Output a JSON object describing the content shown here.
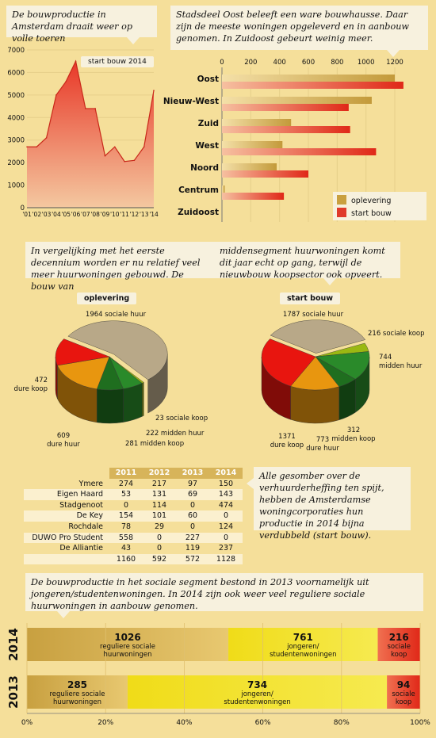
{
  "line_callout": "De bouwproductie in Amsterdam draait weer op volle toeren",
  "bar_callout": "Stadsdeel Oost beleeft een ware bouwhausse. Daar zijn de meeste woningen opgeleverd en in aanbouw genomen. In Zuidoost gebeurt weinig meer.",
  "pie_callout": "In vergelijking met het eerste decennium worden er nu relatief veel meer huurwoningen gebouwd. De bouw van middensegment huurwoningen komt dit jaar echt op gang, terwijl de nieuwbouw koopsector ook opveert.",
  "table_callout": "Alle gesomber over de verhuurderheffing ten spijt, hebben de Amsterdamse woningcorporaties hun productie in 2014 bijna verdubbeld (start bouw).",
  "stack_callout": "De bouwproductie in het sociale segment bestond in 2013 voornamelijk uit jongeren/studentenwoningen. In 2014 zijn ook weer veel reguliere sociale huurwoningen in aanbouw genomen.",
  "colors": {
    "oplevering": "#c9a040",
    "start_bouw": "#e03a2a",
    "pie_sociale": "#b8a888",
    "pie_dure_koop": "#e8150f",
    "pie_dure_huur": "#e8960f",
    "pie_midden": "#2a8a2a",
    "pie_sociaal_koop": "#9ab812"
  },
  "chart_data": [
    {
      "type": "area",
      "title": "",
      "series_label": "start bouw 2014",
      "x": [
        "'01",
        "'02",
        "'03",
        "'04",
        "'05",
        "'06",
        "'07",
        "'08",
        "'09",
        "'10",
        "'11",
        "'12",
        "'13",
        "'14"
      ],
      "values": [
        2700,
        2700,
        3100,
        5000,
        5600,
        6500,
        4400,
        4400,
        2300,
        2700,
        2050,
        2100,
        2700,
        5200
      ],
      "yticks": [
        "0",
        "1000",
        "2000",
        "3000",
        "4000",
        "5000",
        "6000",
        "7000"
      ],
      "ylim": [
        0,
        7000
      ]
    },
    {
      "type": "bar",
      "orientation": "horizontal",
      "categories": [
        "Oost",
        "Nieuw-West",
        "Zuid",
        "West",
        "Noord",
        "Centrum",
        "Zuidoost"
      ],
      "series": [
        {
          "name": "oplevering",
          "values": [
            1200,
            1040,
            480,
            420,
            380,
            20,
            0
          ]
        },
        {
          "name": "start bouw",
          "values": [
            1260,
            880,
            890,
            1070,
            600,
            430,
            0
          ]
        }
      ],
      "xticks": [
        "0",
        "200",
        "400",
        "600",
        "800",
        "1000",
        "1200"
      ],
      "xlim": [
        0,
        1300
      ],
      "legend": "bottom-right"
    },
    {
      "type": "pie",
      "title": "oplevering",
      "slices": [
        {
          "label": "sociale huur",
          "value": 1964
        },
        {
          "label": "sociale koop",
          "value": 23
        },
        {
          "label": "midden huur",
          "value": 222
        },
        {
          "label": "midden koop",
          "value": 281
        },
        {
          "label": "dure huur",
          "value": 609
        },
        {
          "label": "dure koop",
          "value": 472
        }
      ]
    },
    {
      "type": "pie",
      "title": "start bouw",
      "slices": [
        {
          "label": "sociale huur",
          "value": 1787
        },
        {
          "label": "sociale koop",
          "value": 216
        },
        {
          "label": "midden huur",
          "value": 744
        },
        {
          "label": "midden koop",
          "value": 312
        },
        {
          "label": "dure huur",
          "value": 773
        },
        {
          "label": "dure koop",
          "value": 1371
        }
      ]
    },
    {
      "type": "table",
      "columns": [
        "2011",
        "2012",
        "2013",
        "2014"
      ],
      "rows": [
        {
          "name": "Ymere",
          "values": [
            "274",
            "217",
            "97",
            "150"
          ]
        },
        {
          "name": "Eigen Haard",
          "values": [
            "53",
            "131",
            "69",
            "143"
          ]
        },
        {
          "name": "Stadgenoot",
          "values": [
            "0",
            "114",
            "0",
            "474"
          ]
        },
        {
          "name": "De Key",
          "values": [
            "154",
            "101",
            "60",
            "0"
          ]
        },
        {
          "name": "Rochdale",
          "values": [
            "78",
            "29",
            "0",
            "124"
          ]
        },
        {
          "name": "DUWO Pro Student",
          "values": [
            "558",
            "0",
            "227",
            "0"
          ]
        },
        {
          "name": "De Alliantie",
          "values": [
            "43",
            "0",
            "119",
            "237"
          ]
        }
      ],
      "totals": [
        "1160",
        "592",
        "572",
        "1128"
      ]
    },
    {
      "type": "bar",
      "orientation": "horizontal",
      "stacked": "percent",
      "rows": [
        {
          "year": "2014",
          "segments": [
            {
              "value": 1026,
              "label1": "reguliere sociale",
              "label2": "huurwoningen"
            },
            {
              "value": 761,
              "label1": "jongeren/",
              "label2": "studentenwoningen"
            },
            {
              "value": 216,
              "label1": "sociale",
              "label2": "koop"
            }
          ]
        },
        {
          "year": "2013",
          "segments": [
            {
              "value": 285,
              "label1": "reguliere sociale",
              "label2": "huurwoningen"
            },
            {
              "value": 734,
              "label1": "jongeren/",
              "label2": "studentenwoningen"
            },
            {
              "value": 94,
              "label1": "sociale",
              "label2": "koop"
            }
          ]
        }
      ],
      "xticks": [
        "0%",
        "20%",
        "40%",
        "60%",
        "80%",
        "100%"
      ]
    }
  ]
}
